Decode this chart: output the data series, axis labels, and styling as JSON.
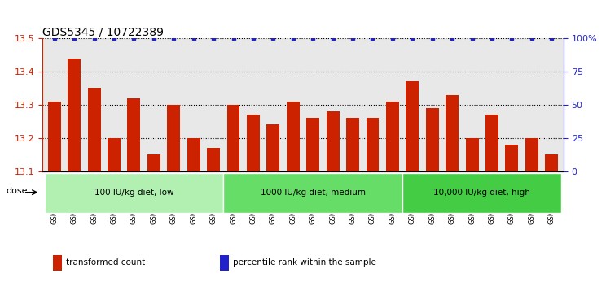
{
  "title": "GDS5345 / 10722389",
  "categories": [
    "GSM1502412",
    "GSM1502413",
    "GSM1502414",
    "GSM1502415",
    "GSM1502416",
    "GSM1502417",
    "GSM1502418",
    "GSM1502419",
    "GSM1502420",
    "GSM1502421",
    "GSM1502422",
    "GSM1502423",
    "GSM1502424",
    "GSM1502425",
    "GSM1502426",
    "GSM1502427",
    "GSM1502428",
    "GSM1502429",
    "GSM1502430",
    "GSM1502431",
    "GSM1502432",
    "GSM1502433",
    "GSM1502434",
    "GSM1502435",
    "GSM1502436",
    "GSM1502437"
  ],
  "values": [
    13.31,
    13.44,
    13.35,
    13.2,
    13.32,
    13.15,
    13.3,
    13.2,
    13.17,
    13.3,
    13.27,
    13.24,
    13.31,
    13.26,
    13.28,
    13.26,
    13.26,
    13.31,
    13.37,
    13.29,
    13.33,
    13.2,
    13.27,
    13.18,
    13.2,
    13.15
  ],
  "bar_color": "#cc2200",
  "dot_color": "#2222cc",
  "ylim_left": [
    13.1,
    13.5
  ],
  "ylim_right": [
    0,
    100
  ],
  "yticks_left": [
    13.1,
    13.2,
    13.3,
    13.4,
    13.5
  ],
  "yticks_right": [
    0,
    25,
    50,
    75,
    100
  ],
  "ytick_labels_right": [
    "0",
    "25",
    "50",
    "75",
    "100%"
  ],
  "grid_values": [
    13.2,
    13.3,
    13.4
  ],
  "groups": [
    {
      "label": "100 IU/kg diet, low",
      "start": 0,
      "end": 8,
      "color": "#b2f0b2"
    },
    {
      "label": "1000 IU/kg diet, medium",
      "start": 9,
      "end": 17,
      "color": "#66dd66"
    },
    {
      "label": "10,000 IU/kg diet, high",
      "start": 18,
      "end": 25,
      "color": "#44cc44"
    }
  ],
  "dose_label": "dose",
  "legend_items": [
    {
      "label": "transformed count",
      "color": "#cc2200"
    },
    {
      "label": "percentile rank within the sample",
      "color": "#2222cc"
    }
  ],
  "plot_bg_color": "#e8e8e8",
  "title_fontsize": 10,
  "bar_width": 0.65
}
